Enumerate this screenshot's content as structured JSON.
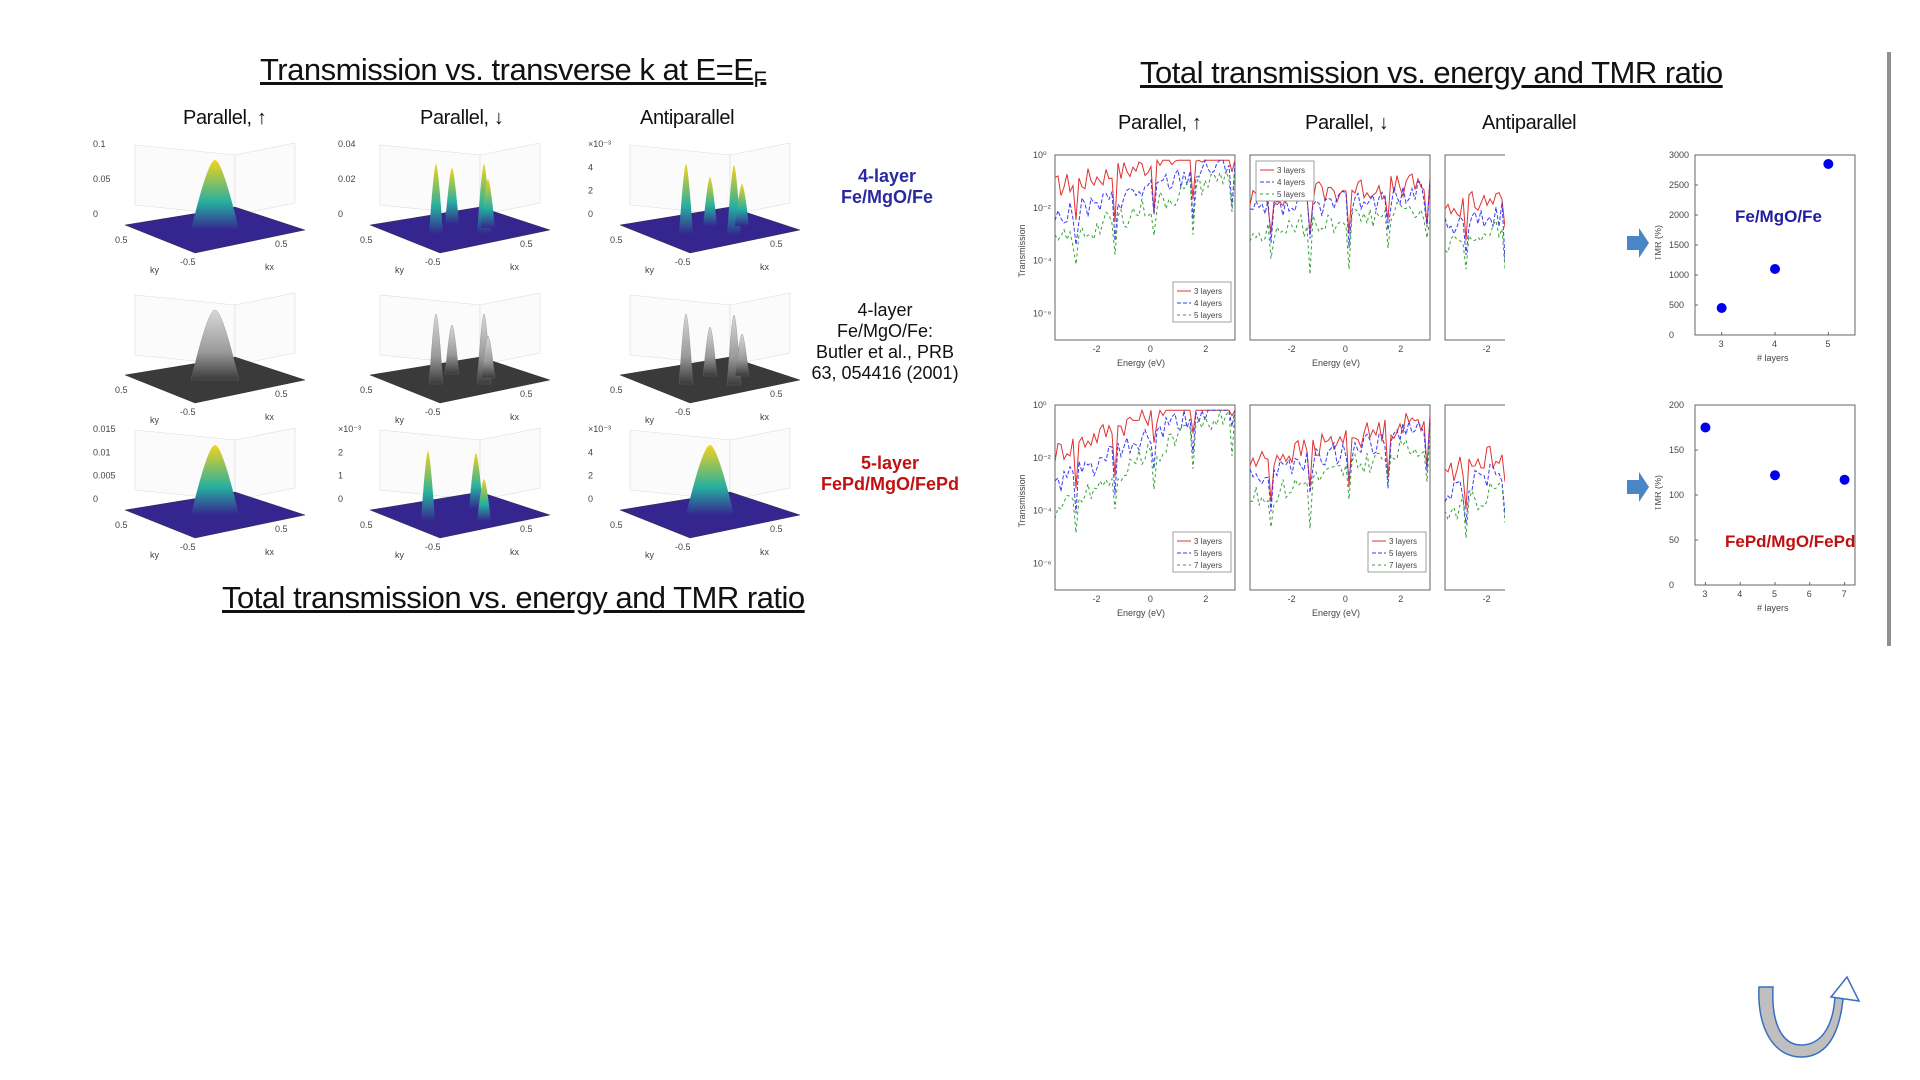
{
  "left_section": {
    "title": "Transmission vs. transverse k at E=E",
    "title_sub": "F",
    "bottom_title": "Total transmission vs. energy and TMR ratio",
    "columns": [
      "Parallel, ↑",
      "Parallel, ↓",
      "Antiparallel"
    ],
    "rows": [
      {
        "label_lines": [
          "4-layer",
          "Fe/MgO/Fe"
        ],
        "color": "#2a2aa0"
      },
      {
        "label_lines": [
          "4-layer",
          "Fe/MgO/Fe:",
          "Butler et al., PRB",
          "63, 054416 (2001)"
        ],
        "color": "#111111"
      },
      {
        "label_lines": [
          "5-layer",
          "FePd/MgO/FePd"
        ],
        "color": "#c01010"
      }
    ],
    "row1_zticks": [
      [
        "0.1",
        "0.05",
        "0"
      ],
      [
        "0.04",
        "0.02",
        "0"
      ],
      [
        "×10⁻³",
        "4",
        "2",
        "0"
      ]
    ],
    "row3_zticks": [
      [
        "0.015",
        "0.01",
        "0.005",
        "0"
      ],
      [
        "×10⁻³",
        "2",
        "1",
        "0"
      ],
      [
        "×10⁻³",
        "4",
        "2",
        "0"
      ]
    ],
    "axis_ticks": [
      "0.5",
      "0",
      "-0.5"
    ],
    "k_labels": [
      "kx",
      "ky"
    ]
  },
  "right_section": {
    "title": "Total transmission vs. energy and TMR ratio",
    "columns": [
      "Parallel, ↑",
      "Parallel, ↓",
      "Antiparallel"
    ],
    "y_label": "Transmission",
    "x_label": "Energy (eV)",
    "x_ticks": [
      "-2",
      "0",
      "2"
    ],
    "y_ticks_top": [
      "10⁰",
      "10⁻²",
      "10⁻⁴",
      "10⁻⁶"
    ],
    "y_ticks_bottom": [
      "10⁰",
      "10⁻²",
      "10⁻⁴",
      "10⁻⁶"
    ],
    "legend_top": [
      "3 layers",
      "4 layers",
      "5 layers"
    ],
    "legend_bottom": [
      "3 layers",
      "5 layers",
      "7 layers"
    ],
    "series_colors": [
      "#e03030",
      "#3a3aee",
      "#33a033"
    ]
  },
  "chart_data": [
    {
      "type": "scatter",
      "title": "Fe/MgO/Fe",
      "xlabel": "# layers",
      "ylabel": "TMR (%)",
      "x": [
        3,
        4,
        5
      ],
      "y": [
        450,
        1100,
        2850
      ],
      "xlim": [
        2.5,
        5.5
      ],
      "ylim": [
        0,
        3000
      ],
      "xticks": [
        3,
        4,
        5
      ],
      "yticks": [
        0,
        500,
        1000,
        1500,
        2000,
        2500,
        3000
      ],
      "color": "#0000ee",
      "label_color": "#1e1ea0"
    },
    {
      "type": "scatter",
      "title": "FePd/MgO/FePd",
      "xlabel": "# layers",
      "ylabel": "TMR (%)",
      "x": [
        3,
        5,
        7
      ],
      "y": [
        175,
        122,
        117
      ],
      "xlim": [
        2.7,
        7.3
      ],
      "ylim": [
        0,
        200
      ],
      "xticks": [
        3,
        4,
        5,
        6,
        7
      ],
      "yticks": [
        0,
        50,
        100,
        150,
        200
      ],
      "color": "#0000ee",
      "label_color": "#c01010"
    }
  ],
  "colors": {
    "arrow": "#4a86c5",
    "divider": "#8f8f8f",
    "nav_icon_fill": "#bfbfbf",
    "nav_icon_stroke": "#3a6ec0"
  },
  "icons": {
    "nav": "u-turn-arrow-icon",
    "flow": "right-arrow-icon"
  }
}
